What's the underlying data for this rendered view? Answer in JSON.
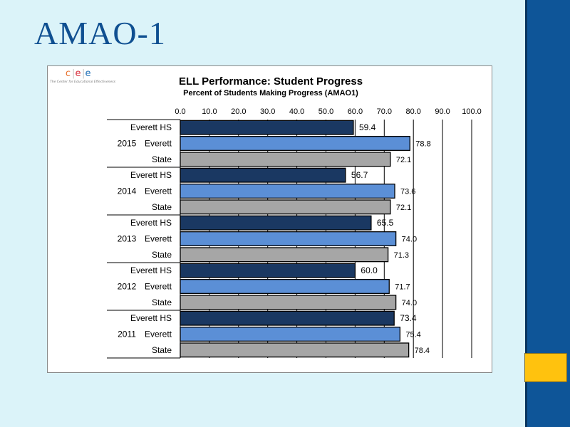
{
  "slide": {
    "title": "AMAO-1",
    "colors": {
      "background": "#dbf3f9",
      "title": "#0f4f91",
      "right_bar": "#0e5598",
      "accent": "#ffc20e"
    }
  },
  "logo": {
    "letters": [
      "c",
      "e",
      "e"
    ],
    "letter_colors": [
      "#e8702a",
      "#d62a37",
      "#1c6db5"
    ],
    "tagline": "The Center for Educational Effectiveness"
  },
  "chart_data": {
    "type": "bar",
    "orientation": "horizontal",
    "title": "ELL Performance:  Student Progress",
    "subtitle": "Percent of Students Making Progress (AMAO1)",
    "xlabel": "",
    "ylabel": "",
    "xlim": [
      0,
      100
    ],
    "x_ticks": [
      "0.0",
      "10.0",
      "20.0",
      "30.0",
      "40.0",
      "50.0",
      "60.0",
      "70.0",
      "80.0",
      "90.0",
      "100.0"
    ],
    "grid": "vertical",
    "series_colors": {
      "Everett HS": "#1a3862",
      "Everett": "#5b8fd6",
      "State": "#a6a6a6"
    },
    "groups": [
      {
        "year": "2015",
        "bars": [
          {
            "label": "Everett HS",
            "value": 59.4,
            "value_label": "59.4"
          },
          {
            "label": "Everett",
            "value": 78.8,
            "value_label": "78.8"
          },
          {
            "label": "State",
            "value": 72.1,
            "value_label": "72.1"
          }
        ]
      },
      {
        "year": "2014",
        "bars": [
          {
            "label": "Everett HS",
            "value": 56.7,
            "value_label": "56.7"
          },
          {
            "label": "Everett",
            "value": 73.6,
            "value_label": "73.6"
          },
          {
            "label": "State",
            "value": 72.1,
            "value_label": "72.1"
          }
        ]
      },
      {
        "year": "2013",
        "bars": [
          {
            "label": "Everett HS",
            "value": 65.5,
            "value_label": "65.5"
          },
          {
            "label": "Everett",
            "value": 74.0,
            "value_label": "74.0"
          },
          {
            "label": "State",
            "value": 71.3,
            "value_label": "71.3"
          }
        ]
      },
      {
        "year": "2012",
        "bars": [
          {
            "label": "Everett HS",
            "value": 60.0,
            "value_label": "60.0"
          },
          {
            "label": "Everett",
            "value": 71.7,
            "value_label": "71.7"
          },
          {
            "label": "State",
            "value": 74.0,
            "value_label": "74.0"
          }
        ]
      },
      {
        "year": "2011",
        "bars": [
          {
            "label": "Everett HS",
            "value": 73.4,
            "value_label": "73.4"
          },
          {
            "label": "Everett",
            "value": 75.4,
            "value_label": "75.4"
          },
          {
            "label": "State",
            "value": 78.4,
            "value_label": "78.4"
          }
        ]
      }
    ]
  }
}
